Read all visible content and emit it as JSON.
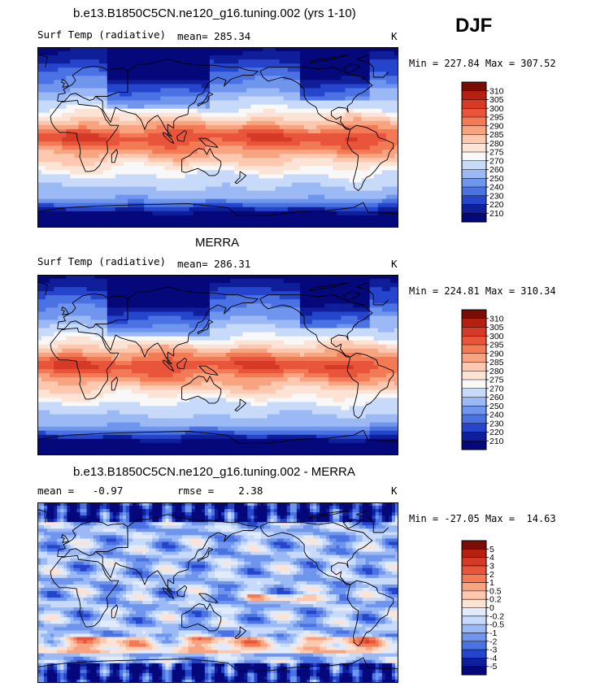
{
  "season": "DJF",
  "colors": {
    "warm": [
      "#fbe3d6",
      "#fcc9b0",
      "#f9a480",
      "#f27a55",
      "#e8553a",
      "#d63a26",
      "#b5200f",
      "#7c0c06"
    ],
    "cold": [
      "#e1ebfb",
      "#c8dafa",
      "#a5c1f6",
      "#7ea3ef",
      "#5a83e8",
      "#3a64de",
      "#2140c8",
      "#0f1f9a",
      "#05087a"
    ],
    "zero": "#f5f5f5"
  },
  "chart_data": [
    {
      "type": "heatmap",
      "title": "b.e13.B1850C5CN.ne120_g16.tuning.002 (yrs 1-10)",
      "variable": "Surf Temp (radiative)",
      "stat_left": "mean= 285.34",
      "stat_right": "",
      "units": "K",
      "min_max": "Min = 227.84 Max = 307.52",
      "colorbar": {
        "labels": [
          "310",
          "305",
          "300",
          "295",
          "290",
          "285",
          "280",
          "275",
          "270",
          "260",
          "250",
          "240",
          "230",
          "220",
          "210"
        ],
        "colors": [
          "#7c0c06",
          "#b5200f",
          "#d63a26",
          "#e8553a",
          "#f27a55",
          "#f9a480",
          "#fcc9b0",
          "#fbe3d6",
          "#f8f8f8",
          "#c8dafa",
          "#9bb9f4",
          "#6f95ec",
          "#4a72e3",
          "#2545cc",
          "#0f1f9a",
          "#05087a"
        ]
      }
    },
    {
      "type": "heatmap",
      "title": "MERRA",
      "variable": "Surf Temp (radiative)",
      "stat_left": "mean= 286.31",
      "stat_right": "",
      "units": "K",
      "min_max": "Min = 224.81 Max = 310.34",
      "colorbar": {
        "labels": [
          "310",
          "305",
          "300",
          "295",
          "290",
          "285",
          "280",
          "275",
          "270",
          "260",
          "250",
          "240",
          "230",
          "220",
          "210"
        ],
        "colors": [
          "#7c0c06",
          "#b5200f",
          "#d63a26",
          "#e8553a",
          "#f27a55",
          "#f9a480",
          "#fcc9b0",
          "#fbe3d6",
          "#f8f8f8",
          "#c8dafa",
          "#9bb9f4",
          "#6f95ec",
          "#4a72e3",
          "#2545cc",
          "#0f1f9a",
          "#05087a"
        ]
      }
    },
    {
      "type": "heatmap",
      "title": "b.e13.B1850C5CN.ne120_g16.tuning.002 - MERRA",
      "variable": "",
      "stat_left": "mean =   -0.97",
      "stat_right": "rmse =    2.38",
      "units": "K",
      "min_max": "Min = -27.05 Max =  14.63",
      "colorbar": {
        "labels": [
          "5",
          "4",
          "3",
          "2",
          "1",
          "0.5",
          "0.2",
          "0",
          "-0.2",
          "-0.5",
          "-1",
          "-2",
          "-3",
          "-4",
          "-5"
        ],
        "colors": [
          "#7c0c06",
          "#b5200f",
          "#d63a26",
          "#e8553a",
          "#f27a55",
          "#f9a480",
          "#fcc9b0",
          "#fbe3d6",
          "#e1ebfb",
          "#c8dafa",
          "#9bb9f4",
          "#6f95ec",
          "#4a72e3",
          "#2545cc",
          "#0f1f9a",
          "#05087a"
        ]
      }
    }
  ]
}
